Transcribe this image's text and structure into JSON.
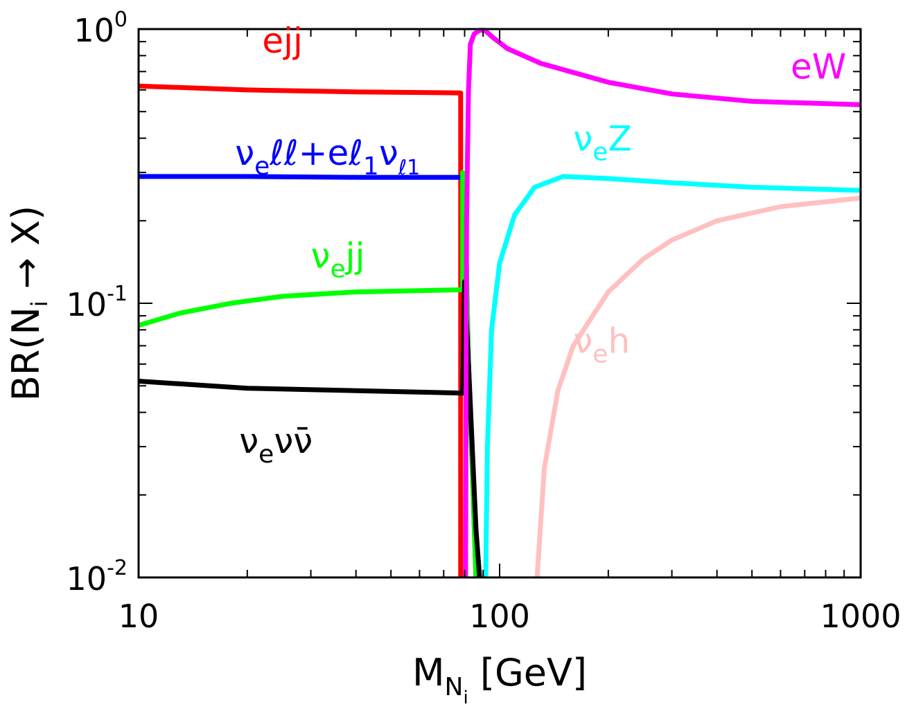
{
  "chart_data": {
    "type": "line",
    "xscale": "log",
    "yscale": "log",
    "xlim": [
      10,
      1000
    ],
    "ylim": [
      0.01,
      1.0
    ],
    "xlabel": {
      "main": "M",
      "sub": "N",
      "subsub": "i",
      "unit": " [GeV]"
    },
    "ylabel": {
      "pre": "BR(N",
      "sub": "i",
      "post": " → X)"
    },
    "xticks": [
      {
        "value": 10,
        "label": "10"
      },
      {
        "value": 100,
        "label": "100"
      },
      {
        "value": 1000,
        "label": "1000"
      }
    ],
    "yticks": [
      {
        "value": 1.0,
        "base": "10",
        "exp": "0"
      },
      {
        "value": 0.1,
        "base": "10",
        "exp": "-1"
      },
      {
        "value": 0.01,
        "base": "10",
        "exp": "-2"
      }
    ],
    "series": [
      {
        "name": "ejj",
        "color": "#ff0000",
        "points": [
          [
            10,
            0.62
          ],
          [
            20,
            0.6
          ],
          [
            40,
            0.59
          ],
          [
            78,
            0.585
          ],
          [
            78,
            0.01
          ]
        ],
        "label": {
          "main": "ejj",
          "sub": "",
          "at": [
            22,
            0.82
          ]
        }
      },
      {
        "name": "νeℓℓ+eℓ1νℓ1",
        "color": "#0000ff",
        "points": [
          [
            10,
            0.29
          ],
          [
            20,
            0.29
          ],
          [
            40,
            0.288
          ],
          [
            79,
            0.288
          ],
          [
            80.5,
            0.18
          ],
          [
            82,
            0.06
          ],
          [
            84,
            0.025
          ],
          [
            86,
            0.01
          ]
        ],
        "label": {
          "main": "ν",
          "sub": "e",
          "tail": "ℓℓ+eℓ",
          "sub2": "1",
          "tail2": "ν",
          "sub3": "ℓ1",
          "at": [
            18.5,
            0.32
          ]
        }
      },
      {
        "name": "νejj",
        "color": "#00ff00",
        "points": [
          [
            10,
            0.083
          ],
          [
            13,
            0.092
          ],
          [
            18,
            0.1
          ],
          [
            25,
            0.106
          ],
          [
            40,
            0.11
          ],
          [
            79,
            0.112
          ],
          [
            79,
            0.3
          ],
          [
            80.5,
            0.2
          ],
          [
            82,
            0.06
          ],
          [
            84,
            0.025
          ],
          [
            86,
            0.01
          ]
        ],
        "label": {
          "main": "ν",
          "sub": "e",
          "tail": "jj",
          "at": [
            30,
            0.135
          ]
        }
      },
      {
        "name": "νeνν̄",
        "color": "#000000",
        "points": [
          [
            10,
            0.052
          ],
          [
            20,
            0.049
          ],
          [
            40,
            0.048
          ],
          [
            79,
            0.047
          ],
          [
            80,
            0.12
          ],
          [
            82,
            0.06
          ],
          [
            84,
            0.03
          ],
          [
            86,
            0.015
          ],
          [
            88,
            0.01
          ]
        ],
        "label": {
          "main": "ν",
          "sub": "e",
          "tail": "νν̄",
          "at": [
            19,
            0.0285
          ]
        }
      },
      {
        "name": "eW",
        "color": "#ff00ff",
        "points": [
          [
            80.5,
            0.01
          ],
          [
            81,
            0.2
          ],
          [
            82,
            0.6
          ],
          [
            83,
            0.88
          ],
          [
            85,
            0.96
          ],
          [
            88,
            0.99
          ],
          [
            91,
            0.99
          ],
          [
            96,
            0.93
          ],
          [
            105,
            0.85
          ],
          [
            130,
            0.75
          ],
          [
            200,
            0.64
          ],
          [
            300,
            0.58
          ],
          [
            500,
            0.545
          ],
          [
            1000,
            0.53
          ]
        ],
        "label": {
          "main": "eW",
          "sub": "",
          "at": [
            640,
            0.66
          ]
        }
      },
      {
        "name": "νeZ",
        "color": "#00ffff",
        "points": [
          [
            91.5,
            0.01
          ],
          [
            92.5,
            0.03
          ],
          [
            95,
            0.08
          ],
          [
            100,
            0.14
          ],
          [
            110,
            0.21
          ],
          [
            125,
            0.265
          ],
          [
            150,
            0.29
          ],
          [
            200,
            0.285
          ],
          [
            300,
            0.275
          ],
          [
            500,
            0.265
          ],
          [
            1000,
            0.258
          ]
        ],
        "label": {
          "main": "ν",
          "sub": "e",
          "tail": "Z",
          "at": [
            160,
            0.36
          ]
        }
      },
      {
        "name": "νeh",
        "color": "#ffc0c0",
        "points": [
          [
            127,
            0.01
          ],
          [
            133,
            0.025
          ],
          [
            145,
            0.048
          ],
          [
            160,
            0.07
          ],
          [
            200,
            0.11
          ],
          [
            250,
            0.145
          ],
          [
            300,
            0.17
          ],
          [
            400,
            0.2
          ],
          [
            600,
            0.225
          ],
          [
            1000,
            0.242
          ]
        ],
        "label": {
          "main": "ν",
          "sub": "e",
          "tail": "h",
          "at": [
            160,
            0.066
          ]
        }
      }
    ]
  }
}
